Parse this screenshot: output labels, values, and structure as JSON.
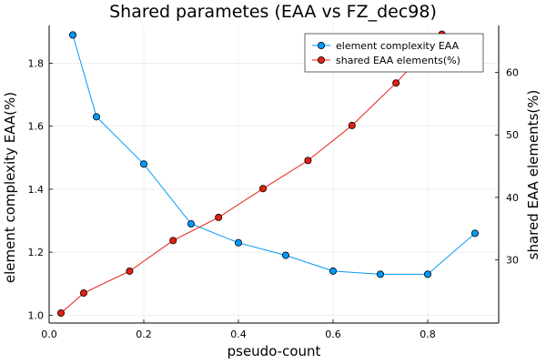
{
  "chart_data": {
    "type": "line",
    "title": "Shared parametes (EAA vs FZ_dec98)",
    "xlabel": "pseudo-count",
    "ylabel_left": "element complexity EAA(%)",
    "ylabel_right": "shared EAA elements(%)",
    "x_ticks": [
      "0.0",
      "0.2",
      "0.4",
      "0.6",
      "0.8"
    ],
    "y_left_ticks": [
      "1.0",
      "1.2",
      "1.4",
      "1.6",
      "1.8"
    ],
    "y_right_ticks": [
      "30",
      "40",
      "50",
      "60"
    ],
    "xlim": [
      0.0,
      0.95
    ],
    "ylim_left": [
      0.975,
      1.92
    ],
    "ylim_right": [
      19.9,
      67.5
    ],
    "grid": true,
    "legend_position": "top-right",
    "series": [
      {
        "name": "element complexity EAA",
        "axis": "left",
        "color": "#009AFA",
        "x": [
          0.05,
          0.1,
          0.2,
          0.3,
          0.4,
          0.5,
          0.6,
          0.7,
          0.8,
          0.9
        ],
        "values": [
          1.89,
          1.63,
          1.48,
          1.29,
          1.23,
          1.19,
          1.14,
          1.13,
          1.13,
          1.26
        ]
      },
      {
        "name": "shared EAA elements(%)",
        "axis": "right",
        "color": "#E51E10",
        "x": [
          0.025,
          0.073,
          0.17,
          0.262,
          0.358,
          0.452,
          0.547,
          0.64,
          0.733,
          0.83
        ],
        "values": [
          21.5,
          24.7,
          28.2,
          33.1,
          36.8,
          41.4,
          45.9,
          51.5,
          58.3,
          66.1
        ]
      }
    ]
  }
}
